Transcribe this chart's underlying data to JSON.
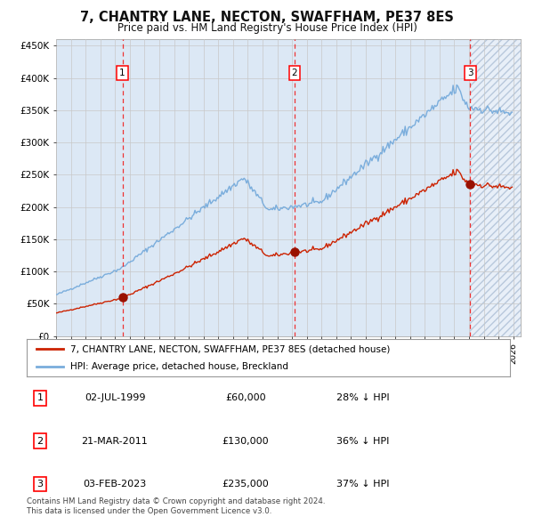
{
  "title": "7, CHANTRY LANE, NECTON, SWAFFHAM, PE37 8ES",
  "subtitle": "Price paid vs. HM Land Registry's House Price Index (HPI)",
  "legend_line1": "7, CHANTRY LANE, NECTON, SWAFFHAM, PE37 8ES (detached house)",
  "legend_line2": "HPI: Average price, detached house, Breckland",
  "sale_info": [
    [
      "1",
      "02-JUL-1999",
      "£60,000",
      "28% ↓ HPI"
    ],
    [
      "2",
      "21-MAR-2011",
      "£130,000",
      "36% ↓ HPI"
    ],
    [
      "3",
      "03-FEB-2023",
      "£235,000",
      "37% ↓ HPI"
    ]
  ],
  "sale_prices": [
    60000,
    130000,
    235000
  ],
  "ylabel_ticks": [
    0,
    50000,
    100000,
    150000,
    200000,
    250000,
    300000,
    350000,
    400000,
    450000
  ],
  "ylabel_labels": [
    "£0",
    "£50K",
    "£100K",
    "£150K",
    "£200K",
    "£250K",
    "£300K",
    "£350K",
    "£400K",
    "£450K"
  ],
  "hpi_color": "#7aaddc",
  "price_color": "#cc2200",
  "sale_dot_color": "#991100",
  "background_color": "#ffffff",
  "plot_bg_color": "#dce8f5",
  "grid_color": "#c8c8c8",
  "footer_text": "Contains HM Land Registry data © Crown copyright and database right 2024.\nThis data is licensed under the Open Government Licence v3.0.",
  "x_start_year": 1995,
  "x_end_year": 2026
}
